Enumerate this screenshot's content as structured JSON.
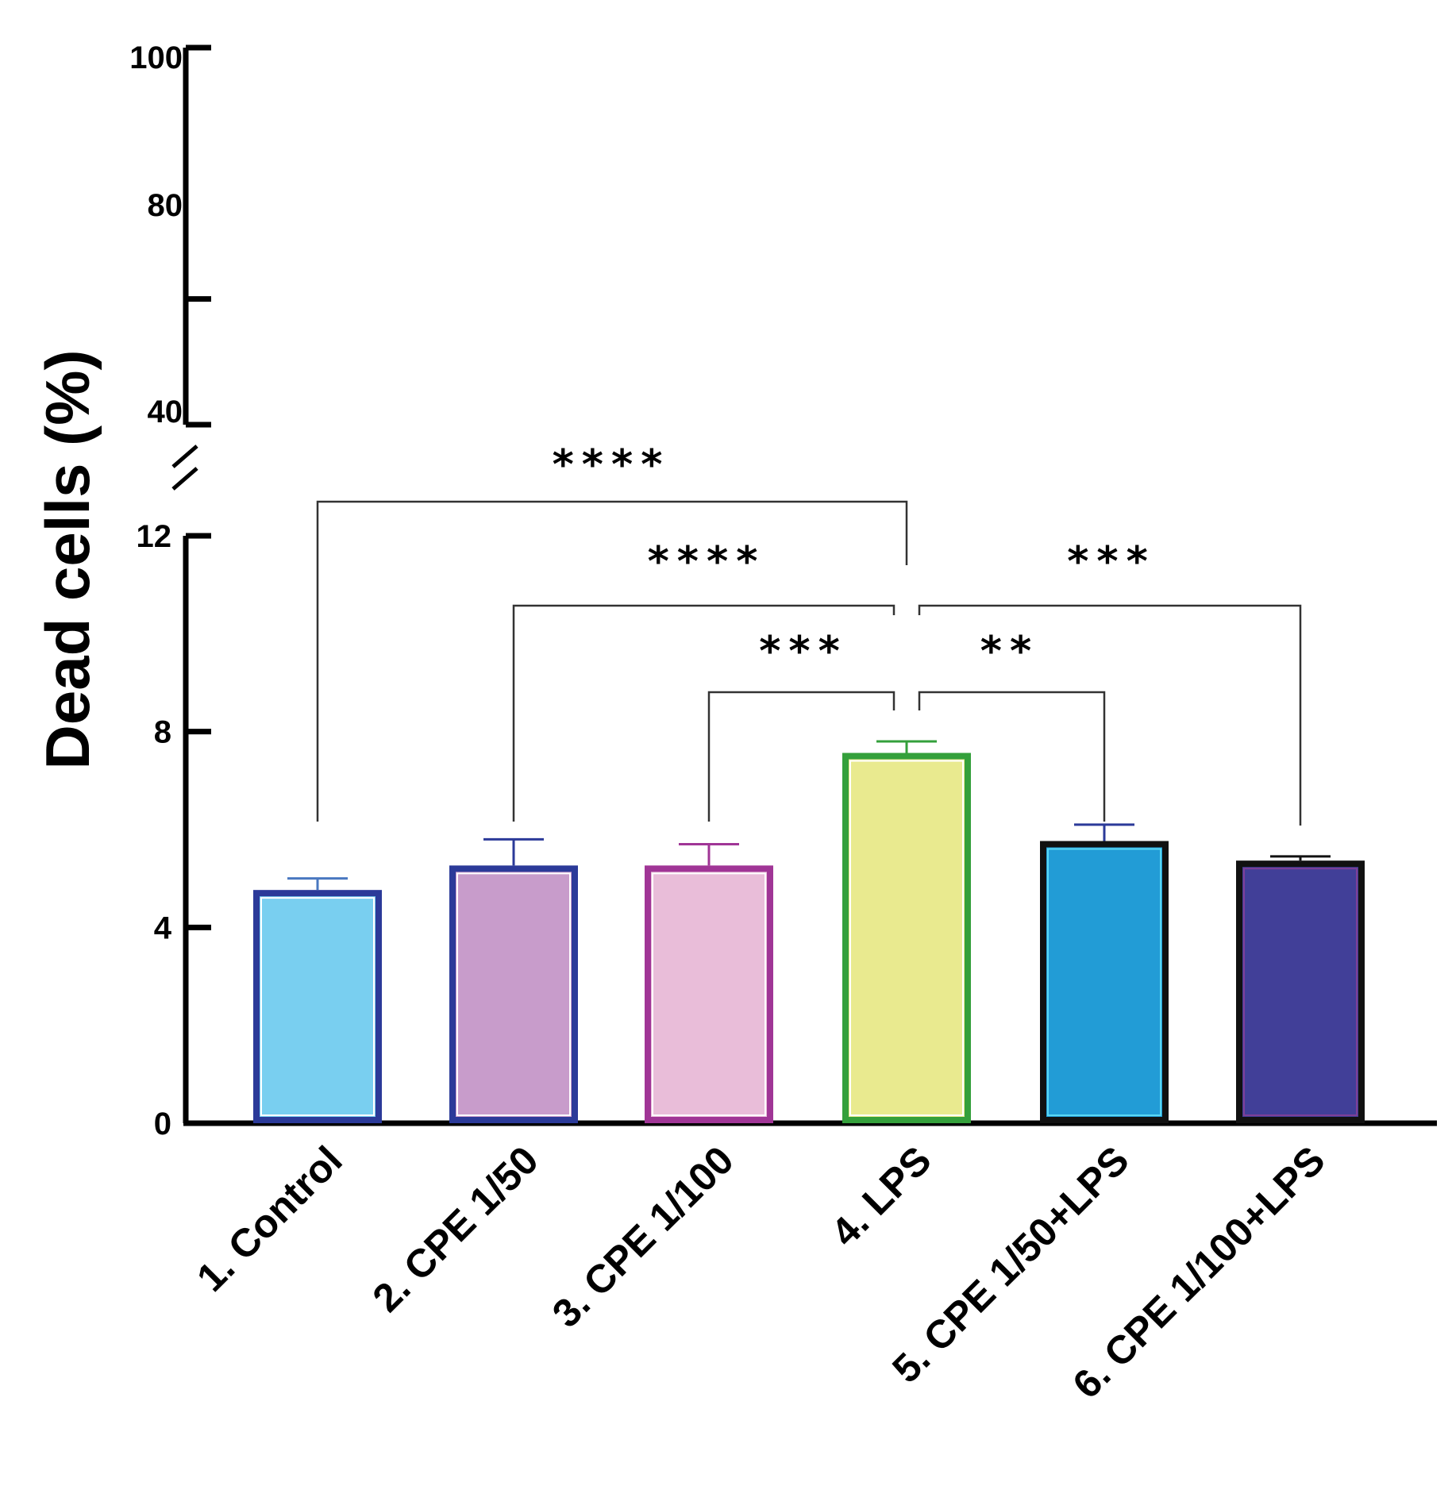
{
  "chart_data": {
    "type": "bar",
    "ylabel": "Dead cells (%)",
    "xlabel": "",
    "title": "",
    "axis_break": {
      "lower_range": [
        0,
        12
      ],
      "upper_range": [
        40,
        100
      ]
    },
    "lower_ticks": [
      "0",
      "4",
      "8",
      "12"
    ],
    "upper_ticks": [
      "40",
      "80",
      "100"
    ],
    "categories": [
      "1. Control",
      "2. CPE 1/50",
      "3. CPE 1/100",
      "4. LPS",
      "5. CPE 1/50+LPS",
      "6. CPE 1/100+LPS"
    ],
    "values": [
      4.7,
      5.2,
      5.2,
      7.5,
      5.7,
      5.3
    ],
    "errors": [
      0.3,
      0.6,
      0.5,
      0.3,
      0.4,
      0.15
    ],
    "bar_fill_colors": [
      "#79cff0",
      "#c89ccb",
      "#e9bdd9",
      "#e9ea8f",
      "#229cd6",
      "#413f98"
    ],
    "bar_border_colors": [
      "#2b3a99",
      "#2b3a99",
      "#a03596",
      "#34a03b",
      "#111111",
      "#111111"
    ],
    "bar_inner_colors": [
      "#ffffff",
      "#ffffff",
      "#ffffff",
      "#ffffff",
      "#5ad7f3",
      "#7e3f98"
    ],
    "error_colors": [
      "#4a78c0",
      "#2b3a99",
      "#a03596",
      "#34a03b",
      "#2b3a99",
      "#111111"
    ],
    "significance": [
      {
        "from": "1. Control",
        "to": "4. LPS",
        "label": "****"
      },
      {
        "from": "2. CPE 1/50",
        "to": "4. LPS",
        "label": "****"
      },
      {
        "from": "3. CPE 1/100",
        "to": "4. LPS",
        "label": "***"
      },
      {
        "from": "4. LPS",
        "to": "5. CPE 1/50+LPS",
        "label": "**"
      },
      {
        "from": "4. LPS",
        "to": "6. CPE 1/100+LPS",
        "label": "***"
      }
    ],
    "legend": "none",
    "grid": false
  }
}
